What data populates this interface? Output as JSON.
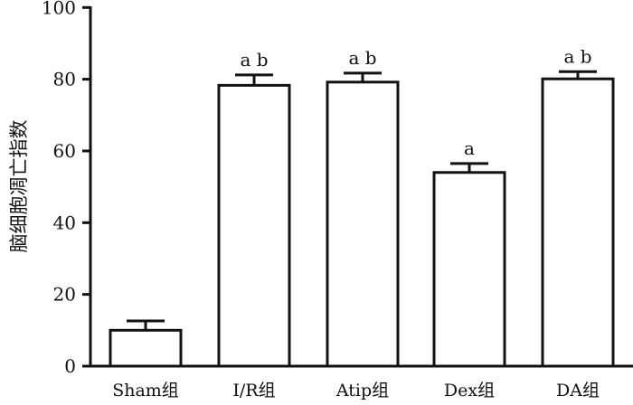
{
  "chart_data": {
    "type": "bar",
    "categories": [
      "Sham组",
      "I/R组",
      "Atip组",
      "Dex组",
      "DA组"
    ],
    "values": [
      10,
      78.3,
      79.2,
      54,
      80.1
    ],
    "error_upper": [
      12.6,
      81.2,
      81.7,
      56.5,
      82.1
    ],
    "annotations": [
      "",
      "a b",
      "a b",
      "a",
      "a b"
    ],
    "title": "",
    "xlabel": "",
    "ylabel": "脑细胞凋亡指数",
    "ylim": [
      0,
      100
    ],
    "yticks": [
      "0",
      "20",
      "40",
      "60",
      "80",
      "100"
    ],
    "grid": false,
    "bar_fill": "#ffffff",
    "bar_stroke": "#111111"
  }
}
